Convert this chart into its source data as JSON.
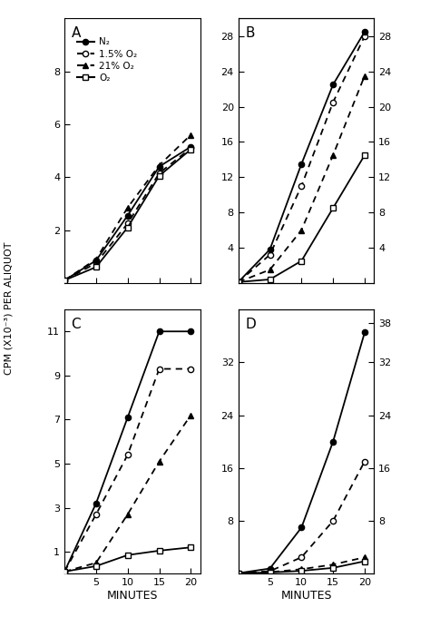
{
  "panels": {
    "A": {
      "label": "A",
      "x": [
        0,
        5,
        10,
        15,
        20
      ],
      "N2": [
        0.1,
        0.85,
        2.55,
        4.4,
        5.15
      ],
      "O15": [
        0.1,
        0.75,
        2.25,
        4.15,
        5.1
      ],
      "O21": [
        0.1,
        0.9,
        2.85,
        4.45,
        5.6
      ],
      "O2": [
        0.1,
        0.6,
        2.1,
        4.05,
        5.05
      ],
      "ylim": [
        0,
        10
      ],
      "yticks": [
        2,
        4,
        6,
        8
      ],
      "show_right": false,
      "right_yticks": [],
      "show_xlabel": false
    },
    "B": {
      "label": "B",
      "x": [
        0,
        5,
        10,
        15,
        20
      ],
      "N2": [
        0.1,
        3.8,
        13.5,
        22.5,
        28.5
      ],
      "O15": [
        0.1,
        3.2,
        11.0,
        20.5,
        28.0
      ],
      "O21": [
        0.1,
        1.5,
        6.0,
        14.5,
        23.5
      ],
      "O2": [
        0.1,
        0.4,
        2.5,
        8.5,
        14.5
      ],
      "ylim": [
        0,
        30
      ],
      "yticks": [
        4,
        8,
        12,
        16,
        20,
        24,
        28
      ],
      "show_right": true,
      "right_yticks": [
        4,
        8,
        12,
        16,
        20,
        24,
        28
      ],
      "show_xlabel": false
    },
    "C": {
      "label": "C",
      "x": [
        0,
        5,
        10,
        15,
        20
      ],
      "N2": [
        0.1,
        3.2,
        7.1,
        11.0,
        11.0
      ],
      "O15": [
        0.1,
        2.7,
        5.4,
        9.3,
        9.3
      ],
      "O21": [
        0.1,
        0.5,
        2.7,
        5.1,
        7.2
      ],
      "O2": [
        0.1,
        0.35,
        0.85,
        1.05,
        1.2
      ],
      "ylim": [
        0,
        12
      ],
      "yticks": [
        1,
        3,
        5,
        7,
        9,
        11
      ],
      "show_right": false,
      "right_yticks": [],
      "show_xlabel": true
    },
    "D": {
      "label": "D",
      "x": [
        0,
        5,
        10,
        15,
        20
      ],
      "N2": [
        0.1,
        0.8,
        7.0,
        20.0,
        36.5
      ],
      "O15": [
        0.1,
        0.4,
        2.5,
        8.0,
        17.0
      ],
      "O21": [
        0.1,
        0.25,
        0.7,
        1.4,
        2.5
      ],
      "O2": [
        0.1,
        0.2,
        0.45,
        0.9,
        1.9
      ],
      "ylim": [
        0,
        40
      ],
      "yticks": [
        8,
        16,
        24,
        32
      ],
      "show_right": true,
      "right_yticks": [
        8,
        16,
        24,
        32,
        38
      ],
      "show_xlabel": true
    }
  },
  "legend": {
    "N2_label": "N₂",
    "O15_label": "1.5% O₂",
    "O21_label": "21% O₂",
    "O2_label": "O₂"
  },
  "ylabel": "CPM (X10⁻³) PER ALIQUOT",
  "xlabel": "MINUTES",
  "xticks": [
    5,
    10,
    15,
    20
  ],
  "background": "#ffffff"
}
